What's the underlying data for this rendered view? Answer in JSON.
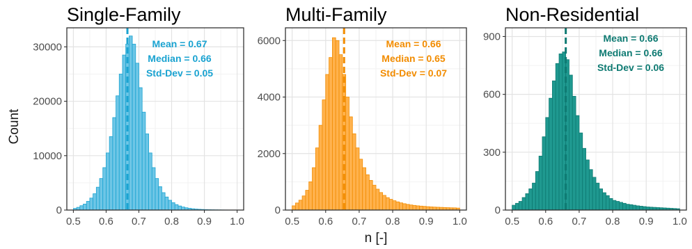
{
  "ylabel": "Count",
  "xlabel": "n [-]",
  "chart_data": [
    {
      "type": "bar",
      "title": "Single-Family",
      "color": "#6ec6e6",
      "accent": "#1aa3d1",
      "xlim": [
        0.48,
        1.02
      ],
      "ylim": [
        0,
        33500
      ],
      "xticks": [
        "0.5",
        "0.6",
        "0.7",
        "0.8",
        "0.9",
        "1.0"
      ],
      "yticks": [
        "0",
        "10000",
        "20000",
        "30000"
      ],
      "bin_start": 0.5,
      "bin_width": 0.01,
      "values": [
        300,
        500,
        800,
        1100,
        1600,
        2200,
        3000,
        4200,
        5800,
        7800,
        10500,
        13500,
        17000,
        21000,
        25000,
        28500,
        30500,
        32000,
        30500,
        27000,
        22500,
        18000,
        14000,
        10500,
        7800,
        5800,
        4300,
        3200,
        2400,
        1800,
        1350,
        1000,
        750,
        560,
        420,
        320,
        240,
        180,
        140,
        110,
        85,
        65,
        50,
        40,
        30,
        22,
        16,
        12,
        8,
        5
      ],
      "mean_line": 0.665,
      "stats": [
        "Mean = 0.67",
        "Median = 0.66",
        "Std-Dev = 0.05"
      ]
    },
    {
      "type": "bar",
      "title": "Multi-Family",
      "color": "#ffb24d",
      "accent": "#f28c00",
      "xlim": [
        0.48,
        1.02
      ],
      "ylim": [
        0,
        6450
      ],
      "xticks": [
        "0.5",
        "0.6",
        "0.7",
        "0.8",
        "0.9",
        "1.0"
      ],
      "yticks": [
        "0",
        "2000",
        "4000",
        "6000"
      ],
      "bin_start": 0.5,
      "bin_width": 0.01,
      "values": [
        150,
        250,
        350,
        500,
        700,
        1000,
        1500,
        2200,
        3000,
        3900,
        4800,
        5400,
        6100,
        6000,
        5500,
        4800,
        4000,
        3300,
        2700,
        2200,
        1800,
        1500,
        1250,
        1050,
        880,
        740,
        620,
        520,
        440,
        380,
        330,
        290,
        255,
        225,
        200,
        180,
        165,
        150,
        140,
        130,
        120,
        112,
        105,
        100,
        95,
        90,
        85,
        80,
        78,
        70
      ],
      "mean_line": 0.655,
      "stats": [
        "Mean = 0.66",
        "Median = 0.65",
        "Std-Dev = 0.07"
      ]
    },
    {
      "type": "bar",
      "title": "Non-Residential",
      "color": "#1f9990",
      "accent": "#0e7a72",
      "xlim": [
        0.48,
        1.02
      ],
      "ylim": [
        0,
        945
      ],
      "xticks": [
        "0.5",
        "0.6",
        "0.7",
        "0.8",
        "0.9",
        "1.0"
      ],
      "yticks": [
        "0",
        "300",
        "600",
        "900"
      ],
      "bin_start": 0.5,
      "bin_width": 0.01,
      "values": [
        25,
        35,
        45,
        65,
        85,
        110,
        140,
        200,
        280,
        380,
        480,
        580,
        670,
        760,
        810,
        820,
        780,
        700,
        590,
        490,
        400,
        320,
        260,
        210,
        170,
        140,
        110,
        90,
        75,
        60,
        50,
        45,
        40,
        35,
        30,
        28,
        25,
        22,
        20,
        18,
        16,
        15,
        14,
        13,
        12,
        11,
        10,
        9,
        8,
        7
      ],
      "mean_line": 0.66,
      "stats": [
        "Mean = 0.66",
        "Median = 0.66",
        "Std-Dev = 0.06"
      ]
    }
  ]
}
